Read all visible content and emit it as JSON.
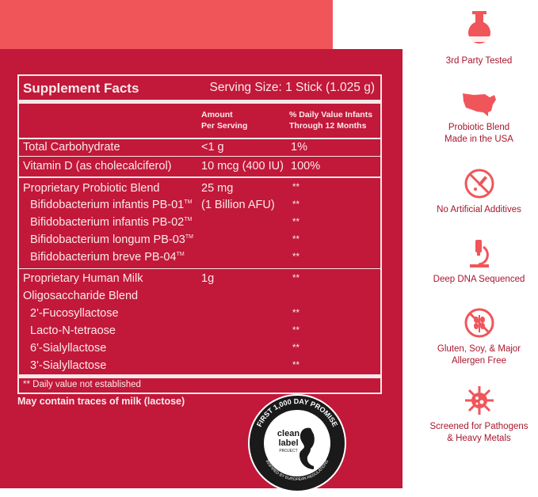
{
  "facts": {
    "title": "Supplement Facts",
    "serving": "Serving Size: 1 Stick (1.025 g)",
    "col_amount_1": "Amount",
    "col_amount_2": "Per Serving",
    "col_dv_1": "% Daily Value Infants",
    "col_dv_2": "Through 12 Months",
    "rows": [
      {
        "name": "Total Carbohydrate",
        "amount": "<1 g",
        "dv": "1%"
      },
      {
        "name": "Vitamin D (as cholecalciferol)",
        "amount": "10 mcg (400 IU)",
        "dv": "100%"
      },
      {
        "name": "Proprietary Probiotic Blend",
        "amount": "25 mg",
        "dv": "**"
      },
      {
        "name": "Bifidobacterium infantis PB-01",
        "amount": "(1 Billion AFU)",
        "dv": "**"
      },
      {
        "name": "Bifidobacterium infantis PB-02",
        "amount": "",
        "dv": "**"
      },
      {
        "name": "Bifidobacterium longum PB-03",
        "amount": "",
        "dv": "**"
      },
      {
        "name": "Bifidobacterium breve PB-04",
        "amount": "",
        "dv": "**"
      },
      {
        "name": "Proprietary Human Milk",
        "amount": "1g",
        "dv": "**"
      },
      {
        "name": "Oligosaccharide Blend",
        "amount": "",
        "dv": ""
      },
      {
        "name": "2'-Fucosyllactose",
        "amount": "",
        "dv": "**"
      },
      {
        "name": "Lacto-N-tetraose",
        "amount": "",
        "dv": "**"
      },
      {
        "name": "6'-Sialyllactose",
        "amount": "",
        "dv": "**"
      },
      {
        "name": "3'-Sialyllactose",
        "amount": "",
        "dv": "**"
      }
    ],
    "tm": "TM",
    "footnote": "** Daily value not established"
  },
  "warning": "May contain traces of milk (lactose)",
  "seal": {
    "ring_top": "FIRST 1,000 DAY PROMISE",
    "ring_bottom": "INSPIRED BY EUROPEAN REGULATIONS",
    "logo_line1": "clean",
    "logo_line2": "label",
    "logo_line3": "PROJECT"
  },
  "badges": [
    {
      "icon": "flask-icon",
      "line1": "3rd Party Tested",
      "line2": ""
    },
    {
      "icon": "usa-map-icon",
      "line1": "Probiotic Blend",
      "line2": "Made in the USA"
    },
    {
      "icon": "no-additives-icon",
      "line1": "No Artificial Additives",
      "line2": ""
    },
    {
      "icon": "microscope-icon",
      "line1": "Deep DNA Sequenced",
      "line2": ""
    },
    {
      "icon": "no-gluten-icon",
      "line1": "Gluten, Soy, & Major",
      "line2": "Allergen Free"
    },
    {
      "icon": "pathogen-icon",
      "line1": "Screened for Pathogens",
      "line2": "& Heavy Metals"
    }
  ],
  "colors": {
    "back_panel": "#f0555a",
    "front_panel": "#c2183a",
    "badge_icon": "#f0555a",
    "badge_text": "#a8172d"
  }
}
